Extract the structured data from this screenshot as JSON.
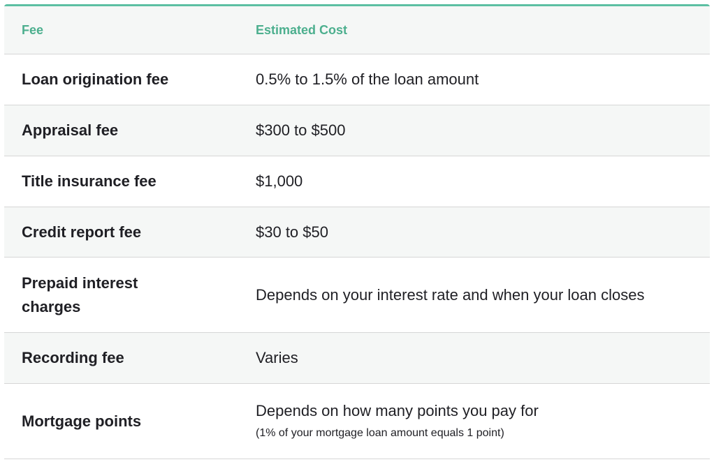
{
  "header": {
    "fee": "Fee",
    "cost": "Estimated Cost"
  },
  "rows": [
    {
      "fee": "Loan origination fee",
      "cost": "0.5% to 1.5% of the loan amount"
    },
    {
      "fee": "Appraisal fee",
      "cost": "$300 to $500"
    },
    {
      "fee": "Title insurance fee",
      "cost": "$1,000"
    },
    {
      "fee": "Credit report fee",
      "cost": "$30 to $50"
    },
    {
      "fee": "Prepaid interest charges",
      "cost": "Depends on your interest rate and when your loan closes"
    },
    {
      "fee": "Recording fee",
      "cost": "Varies"
    },
    {
      "fee": "Mortgage points",
      "cost": "Depends on how many points you pay for",
      "note": "(1% of your mortgage loan amount equals 1 point)"
    }
  ],
  "colors": {
    "accent": "#5cbfa2",
    "header_text": "#4caf8e",
    "stripe": "#f5f7f6"
  }
}
